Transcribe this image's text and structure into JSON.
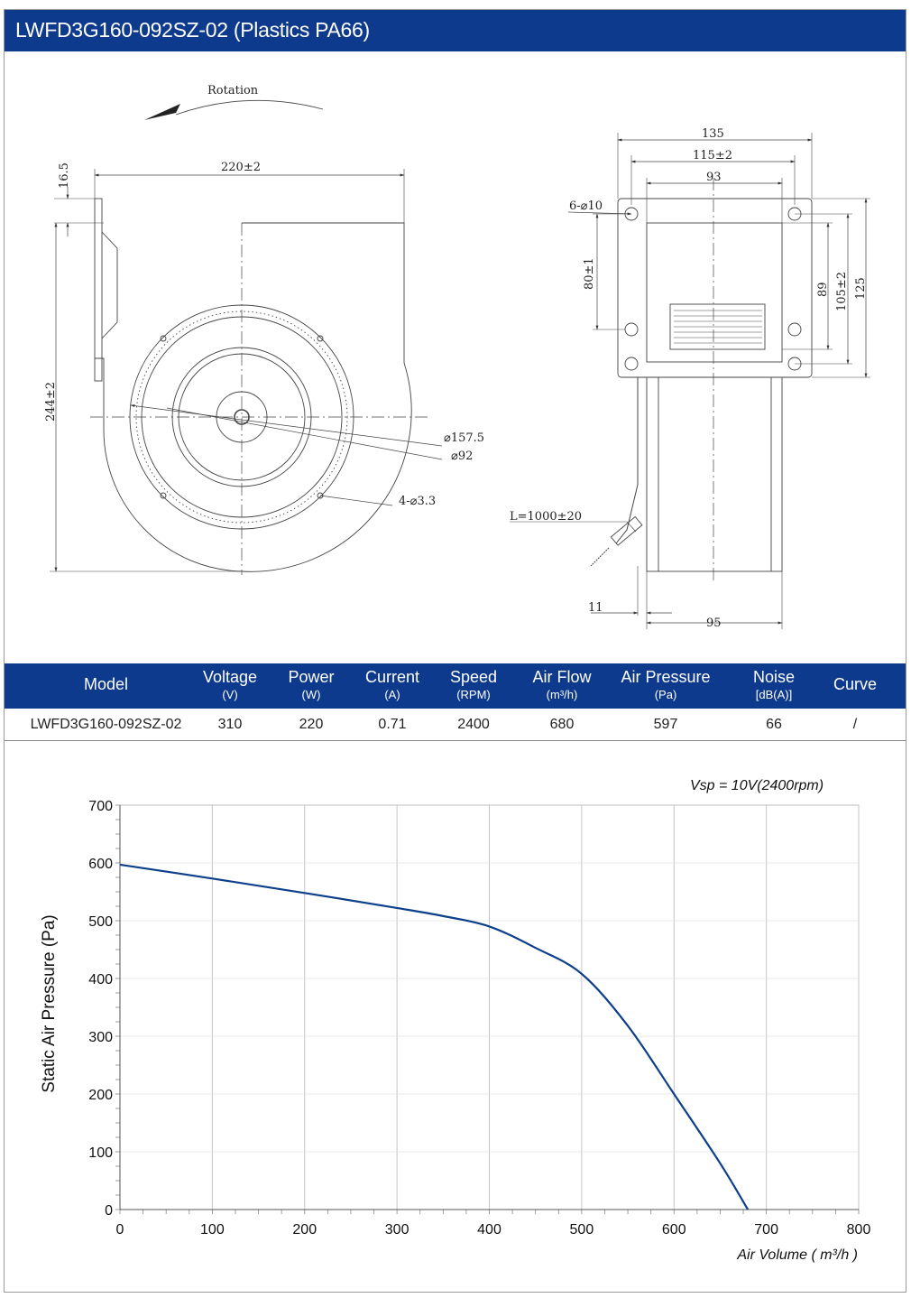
{
  "title": "LWFD3G160-092SZ-02 (Plastics PA66)",
  "drawing": {
    "front": {
      "rotation": "Rotation",
      "width": "220±2",
      "flange": "16.5",
      "height": "244±2",
      "d1": "⌀157.5",
      "d2": "⌀92",
      "holes": "4-⌀3.3"
    },
    "side": {
      "w1": "135",
      "w2": "115±2",
      "w3": "93",
      "holes": "6-⌀10",
      "h1": "80±1",
      "h2": "89",
      "h3": "105±2",
      "h4": "125",
      "cable": "L=1000±20",
      "d11": "11",
      "d95": "95"
    }
  },
  "spec": {
    "headers": [
      {
        "main": "Model",
        "unit": ""
      },
      {
        "main": "Voltage",
        "unit": "(V)"
      },
      {
        "main": "Power",
        "unit": "(W)"
      },
      {
        "main": "Current",
        "unit": "(A)"
      },
      {
        "main": "Speed",
        "unit": "(RPM)"
      },
      {
        "main": "Air Flow",
        "unit": "(m³/h)"
      },
      {
        "main": "Air Pressure",
        "unit": "(Pa)"
      },
      {
        "main": "Noise",
        "unit": "[dB(A)]"
      },
      {
        "main": "Curve",
        "unit": ""
      }
    ],
    "row": [
      "LWFD3G160-092SZ-02",
      "310",
      "220",
      "0.71",
      "2400",
      "680",
      "597",
      "66",
      "/"
    ]
  },
  "chart_data": {
    "type": "line",
    "annotation": "Vsp = 10V(2400rpm)",
    "xlabel": "Air Volume ( m³/h )",
    "ylabel": "Static Air Pressure  (Pa)",
    "xlim": [
      0,
      800
    ],
    "ylim": [
      0,
      700
    ],
    "x_ticks": [
      0,
      100,
      200,
      300,
      400,
      500,
      600,
      700,
      800
    ],
    "y_ticks": [
      0,
      100,
      200,
      300,
      400,
      500,
      600,
      700
    ],
    "grid": true,
    "series": [
      {
        "color": "#0d3f8a",
        "x": [
          0,
          100,
          200,
          300,
          350,
          400,
          450,
          500,
          550,
          600,
          650,
          680
        ],
        "y": [
          597,
          573,
          548,
          522,
          508,
          490,
          453,
          408,
          318,
          200,
          80,
          0
        ]
      }
    ]
  }
}
